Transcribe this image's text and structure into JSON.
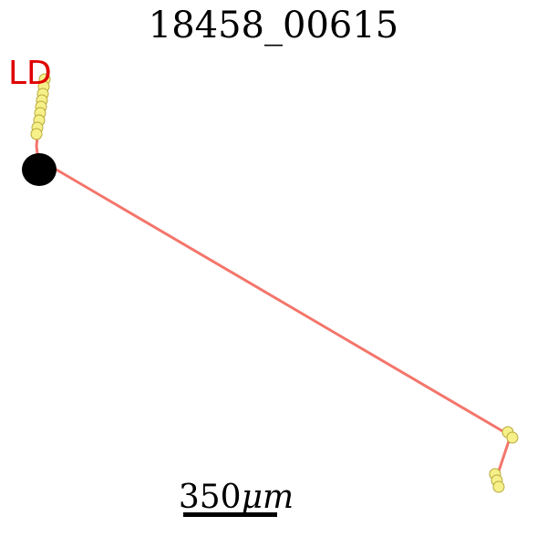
{
  "figure": {
    "title": "18458_00615",
    "corner_label": "LD",
    "scale_bar": {
      "label": "350",
      "unit": "μm"
    },
    "colors": {
      "trace": "#f4756b",
      "marker_fill": "#f6f08a",
      "marker_stroke": "#b8a93a",
      "soma": "#000000",
      "label": "#e00000"
    }
  }
}
